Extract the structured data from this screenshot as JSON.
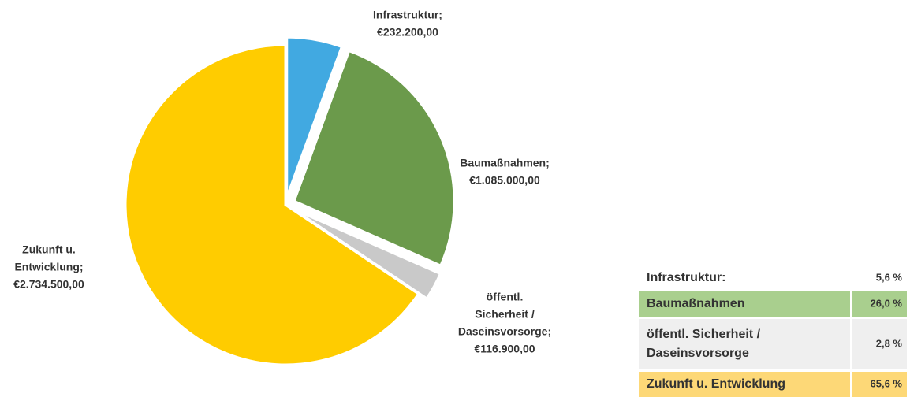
{
  "chart_data": {
    "type": "pie",
    "categories": [
      "Infrastruktur",
      "Baumaßnahmen",
      "öffentl. Sicherheit / Daseinsvorsorge",
      "Zukunft u. Entwicklung"
    ],
    "values": [
      232200,
      1085000,
      116900,
      2734500
    ],
    "value_labels": [
      [
        "Infrastruktur;",
        "€232.200,00"
      ],
      [
        "Baumaßnahmen;",
        "€1.085.000,00"
      ],
      [
        "öffentl.",
        "Sicherheit /",
        "Daseinsvorsorge;",
        "€116.900,00"
      ],
      [
        "Zukunft u.",
        "Entwicklung;",
        "€2.734.500,00"
      ]
    ],
    "colors": [
      "#41a9e1",
      "#6b9a4b",
      "#c9c9c9",
      "#ffcc00"
    ]
  },
  "table": {
    "rows": [
      {
        "label": [
          "Infrastruktur:"
        ],
        "value": "5,6 %",
        "color": "#ffffff"
      },
      {
        "label": [
          "Baumaßnahmen"
        ],
        "value": "26,0 %",
        "color": "#a9cf8e"
      },
      {
        "label": [
          "öffentl. Sicherheit /",
          "Daseinsvorsorge"
        ],
        "value": "2,8 %",
        "color": "#efefef"
      },
      {
        "label": [
          "Zukunft u. Entwicklung"
        ],
        "value": "65,6 %",
        "color": "#fdd877"
      }
    ]
  }
}
